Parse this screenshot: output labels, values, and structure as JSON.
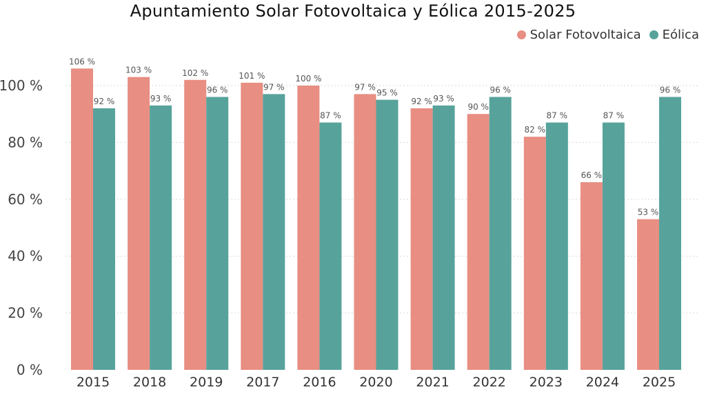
{
  "chart_data": {
    "type": "bar",
    "title": "Apuntamiento Solar Fotovoltaica y Eólica 2015-2025",
    "categories": [
      "2015",
      "2018",
      "2019",
      "2017",
      "2016",
      "2020",
      "2021",
      "2022",
      "2023",
      "2024",
      "2025"
    ],
    "series": [
      {
        "name": "Solar Fotovoltaica",
        "color": "#E88E82",
        "values": [
          106,
          103,
          102,
          101,
          100,
          97,
          92,
          90,
          82,
          66,
          53
        ],
        "labels": [
          "106 %",
          "103 %",
          "102 %",
          "101 %",
          "100 %",
          "97 %",
          "92 %",
          "90 %",
          "82 %",
          "66 %",
          "53 %"
        ]
      },
      {
        "name": "Eólica",
        "color": "#57A39C",
        "values": [
          92,
          93,
          96,
          97,
          87,
          95,
          93,
          96,
          87,
          87,
          96
        ],
        "labels": [
          "92 %",
          "93 %",
          "96 %",
          "97 %",
          "87 %",
          "95 %",
          "93 %",
          "96 %",
          "87 %",
          "87 %",
          "96 %"
        ]
      }
    ],
    "yticks": [
      0,
      20,
      40,
      60,
      80,
      100
    ],
    "ytick_labels": [
      "0 %",
      "20 %",
      "40 %",
      "60 %",
      "80 %",
      "100 %"
    ],
    "ylim": [
      0,
      110
    ],
    "grid": "horizontal-dotted",
    "legend_position": "top-right"
  }
}
